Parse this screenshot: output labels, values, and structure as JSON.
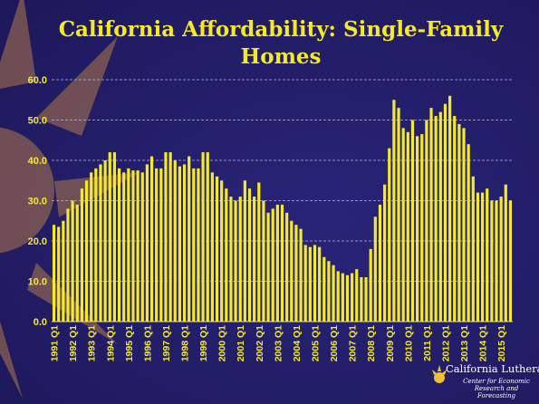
{
  "slide": {
    "title_line1": "California Affordability: Single-Family",
    "title_line2": "Homes",
    "logo": {
      "name": "California Lutheran",
      "subtitle_line1": "Center for Economic",
      "subtitle_line2": "Research and Forecasting"
    }
  },
  "colors": {
    "background": "#241f6b",
    "bar": "#f4ea2a",
    "text": "#f4ea2a",
    "grid": "#b9b6d8"
  },
  "chart_data": {
    "type": "bar",
    "title": "California Affordability: Single-Family Homes",
    "xlabel": "",
    "ylabel": "",
    "ylim": [
      0,
      60
    ],
    "yticks": [
      "0.0",
      "10.0",
      "20.0",
      "30.0",
      "40.0",
      "50.0",
      "60.0"
    ],
    "grid": true,
    "legend": "none",
    "x_tick_labels": [
      "1991 Q1",
      "1992 Q1",
      "1993 Q1",
      "1994 Q1",
      "1995 Q1",
      "1996 Q1",
      "1997 Q1",
      "1998 Q1",
      "1999 Q1",
      "2000 Q1",
      "2001 Q1",
      "2002 Q1",
      "2003 Q1",
      "2004 Q1",
      "2005 Q1",
      "2006 Q1",
      "2007 Q1",
      "2008 Q1",
      "2009 Q1",
      "2010 Q1",
      "2011 Q1",
      "2012 Q1",
      "2013 Q1",
      "2014 Q1",
      "2015 Q1"
    ],
    "categories": [
      "1991 Q1",
      "1991 Q2",
      "1991 Q3",
      "1991 Q4",
      "1992 Q1",
      "1992 Q2",
      "1992 Q3",
      "1992 Q4",
      "1993 Q1",
      "1993 Q2",
      "1993 Q3",
      "1993 Q4",
      "1994 Q1",
      "1994 Q2",
      "1994 Q3",
      "1994 Q4",
      "1995 Q1",
      "1995 Q2",
      "1995 Q3",
      "1995 Q4",
      "1996 Q1",
      "1996 Q2",
      "1996 Q3",
      "1996 Q4",
      "1997 Q1",
      "1997 Q2",
      "1997 Q3",
      "1997 Q4",
      "1998 Q1",
      "1998 Q2",
      "1998 Q3",
      "1998 Q4",
      "1999 Q1",
      "1999 Q2",
      "1999 Q3",
      "1999 Q4",
      "2000 Q1",
      "2000 Q2",
      "2000 Q3",
      "2000 Q4",
      "2001 Q1",
      "2001 Q2",
      "2001 Q3",
      "2001 Q4",
      "2002 Q1",
      "2002 Q2",
      "2002 Q3",
      "2002 Q4",
      "2003 Q1",
      "2003 Q2",
      "2003 Q3",
      "2003 Q4",
      "2004 Q1",
      "2004 Q2",
      "2004 Q3",
      "2004 Q4",
      "2005 Q1",
      "2005 Q2",
      "2005 Q3",
      "2005 Q4",
      "2006 Q1",
      "2006 Q2",
      "2006 Q3",
      "2006 Q4",
      "2007 Q1",
      "2007 Q2",
      "2007 Q3",
      "2007 Q4",
      "2008 Q1",
      "2008 Q2",
      "2008 Q3",
      "2008 Q4",
      "2009 Q1",
      "2009 Q2",
      "2009 Q3",
      "2009 Q4",
      "2010 Q1",
      "2010 Q2",
      "2010 Q3",
      "2010 Q4",
      "2011 Q1",
      "2011 Q2",
      "2011 Q3",
      "2011 Q4",
      "2012 Q1",
      "2012 Q2",
      "2012 Q3",
      "2012 Q4",
      "2013 Q1",
      "2013 Q2",
      "2013 Q3",
      "2013 Q4",
      "2014 Q1",
      "2014 Q2",
      "2014 Q3",
      "2014 Q4",
      "2015 Q1",
      "2015 Q2",
      "2015 Q3"
    ],
    "values": [
      24,
      23.5,
      25,
      28,
      30,
      29,
      33,
      35,
      37,
      38,
      39,
      40,
      42,
      42,
      38,
      37,
      38,
      37.5,
      37.5,
      37,
      39,
      41,
      38,
      38,
      42,
      42,
      40,
      38.5,
      39,
      41,
      38,
      38,
      42,
      42,
      37,
      36,
      35,
      33,
      31,
      30,
      31,
      35,
      33,
      31,
      34.5,
      30,
      27,
      28,
      29,
      29,
      27,
      25,
      24,
      23,
      19,
      18.5,
      19,
      18.5,
      16,
      15,
      14,
      12.5,
      12,
      11.5,
      12,
      13,
      11,
      11,
      18,
      26,
      29,
      34,
      43,
      55,
      53,
      48,
      47,
      50,
      46,
      46.5,
      50,
      53,
      51,
      52,
      54,
      56,
      51,
      49,
      48,
      44,
      36,
      32,
      32,
      33,
      30,
      30,
      31,
      34,
      30
    ]
  }
}
